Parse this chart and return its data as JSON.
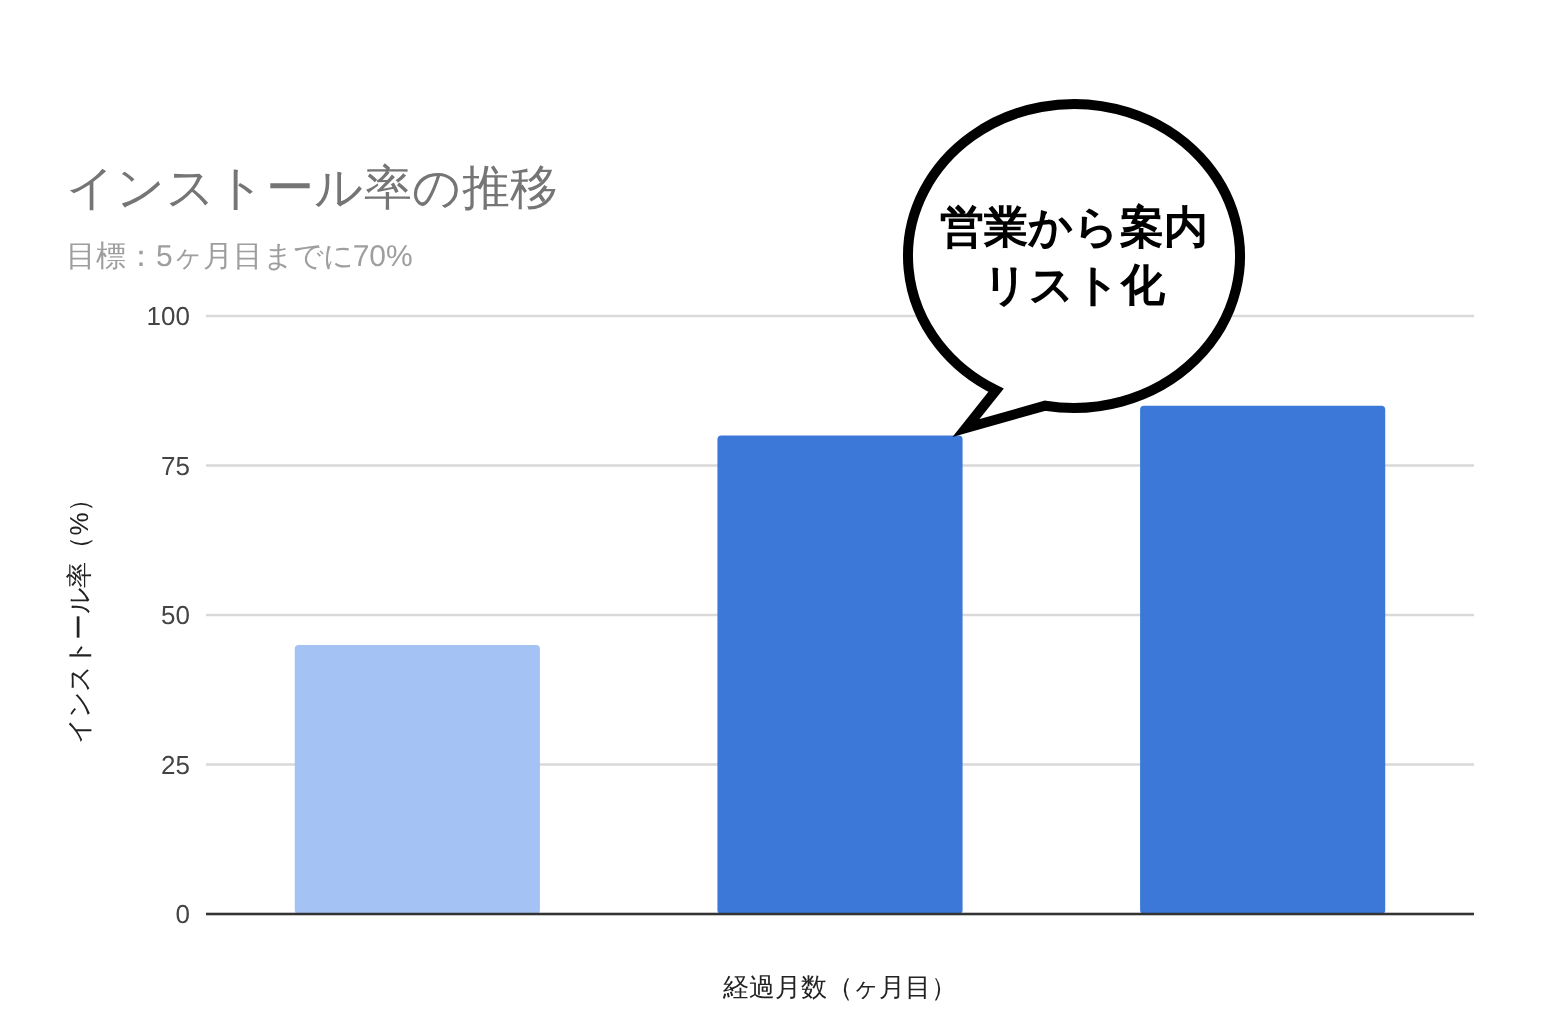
{
  "chart_data": {
    "type": "bar",
    "title": "インストール率の推移",
    "subtitle": "目標：5ヶ月目までに70%",
    "xlabel": "経過月数（ヶ月目）",
    "ylabel": "インストール率（%）",
    "categories": [
      null,
      null,
      null
    ],
    "values": [
      45,
      80,
      85
    ],
    "colors": [
      "#a4c2f4",
      "#3c78d8",
      "#3c78d8"
    ],
    "ylim": [
      0,
      100
    ],
    "yticks": [
      0,
      25,
      50,
      75,
      100
    ],
    "grid": "y",
    "annotations": [
      "営業から案内",
      "リスト化"
    ]
  }
}
